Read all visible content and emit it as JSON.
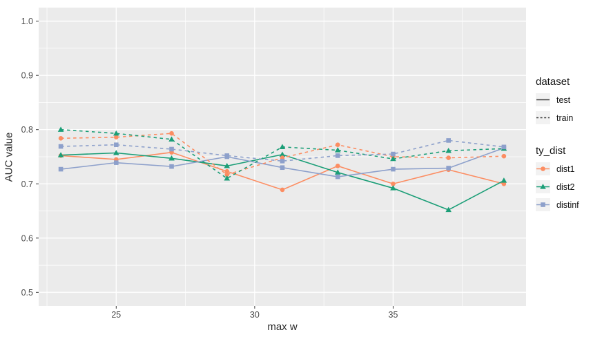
{
  "chart_data": {
    "type": "line",
    "title": "",
    "xlabel": "max w",
    "ylabel": "AUC value",
    "xlim": [
      22.2,
      39.8
    ],
    "ylim": [
      0.475,
      1.025
    ],
    "x_ticks": [
      25,
      30,
      35
    ],
    "y_ticks": [
      0.5,
      0.6,
      0.7,
      0.8,
      0.9,
      1.0
    ],
    "x_minor": [
      22.5,
      27.5,
      32.5,
      37.5
    ],
    "y_minor": [
      0.55,
      0.65,
      0.75,
      0.85,
      0.95
    ],
    "grid": true,
    "x": [
      23,
      25,
      27,
      29,
      31,
      33,
      35,
      37,
      39
    ],
    "series": [
      {
        "name": "test-dist1",
        "dataset": "test",
        "ty_dist": "dist1",
        "color": "#FC8D62",
        "dash": false,
        "marker": "circle",
        "values": [
          0.752,
          0.745,
          0.758,
          0.723,
          0.689,
          0.733,
          0.7,
          0.726,
          0.7
        ]
      },
      {
        "name": "test-dist2",
        "dataset": "test",
        "ty_dist": "dist2",
        "color": "#1B9E77",
        "dash": false,
        "marker": "triangle",
        "values": [
          0.753,
          0.757,
          0.747,
          0.733,
          0.754,
          0.721,
          0.692,
          0.652,
          0.706
        ]
      },
      {
        "name": "test-distinf",
        "dataset": "test",
        "ty_dist": "distinf",
        "color": "#8DA0CB",
        "dash": false,
        "marker": "square",
        "values": [
          0.727,
          0.739,
          0.732,
          0.75,
          0.73,
          0.713,
          0.727,
          0.729,
          0.766
        ]
      },
      {
        "name": "train-dist1",
        "dataset": "train",
        "ty_dist": "dist1",
        "color": "#FC8D62",
        "dash": true,
        "marker": "circle",
        "values": [
          0.784,
          0.786,
          0.793,
          0.717,
          0.748,
          0.772,
          0.75,
          0.748,
          0.751
        ]
      },
      {
        "name": "train-dist2",
        "dataset": "train",
        "ty_dist": "dist2",
        "color": "#1B9E77",
        "dash": true,
        "marker": "triangle",
        "values": [
          0.8,
          0.793,
          0.782,
          0.71,
          0.768,
          0.762,
          0.746,
          0.761,
          0.765
        ]
      },
      {
        "name": "train-distinf",
        "dataset": "train",
        "ty_dist": "distinf",
        "color": "#8DA0CB",
        "dash": true,
        "marker": "square",
        "values": [
          0.769,
          0.772,
          0.764,
          0.752,
          0.742,
          0.752,
          0.755,
          0.78,
          0.768
        ]
      }
    ],
    "legend": {
      "position": "right",
      "dataset": {
        "title": "dataset",
        "items": [
          {
            "label": "test",
            "style": "solid"
          },
          {
            "label": "train",
            "style": "dashed"
          }
        ]
      },
      "ty_dist": {
        "title": "ty_dist",
        "items": [
          {
            "label": "dist1",
            "color": "#FC8D62",
            "marker": "circle"
          },
          {
            "label": "dist2",
            "color": "#1B9E77",
            "marker": "triangle"
          },
          {
            "label": "distinf",
            "color": "#8DA0CB",
            "marker": "square"
          }
        ]
      }
    },
    "colors": {
      "panel_bg": "#EBEBEB",
      "grid": "#FFFFFF",
      "tick_text": "#4D4D4D",
      "axis_title_text": "#2B2B2B",
      "legend_key_bg": "#F2F2F2",
      "legend_line": "#3C3C3C",
      "tick_mark": "#333333"
    }
  }
}
